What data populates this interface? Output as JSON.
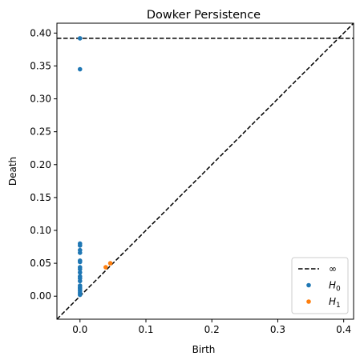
{
  "chart_data": {
    "type": "scatter",
    "title": "Dowker Persistence",
    "xlabel": "Birth",
    "ylabel": "Death",
    "xlim": [
      -0.035,
      0.415
    ],
    "ylim": [
      -0.035,
      0.415
    ],
    "x_ticks": [
      0.0,
      0.1,
      0.2,
      0.3,
      0.4
    ],
    "x_tick_labels": [
      "0.0",
      "0.1",
      "0.2",
      "0.3",
      "0.4"
    ],
    "y_ticks": [
      0.0,
      0.05,
      0.1,
      0.15,
      0.2,
      0.25,
      0.3,
      0.35,
      0.4
    ],
    "y_tick_labels": [
      "0.00",
      "0.05",
      "0.10",
      "0.15",
      "0.20",
      "0.25",
      "0.30",
      "0.35",
      "0.40"
    ],
    "grid": false,
    "legend_position": "bottom-right",
    "infinity_level": 0.392,
    "diagonal": true,
    "series": [
      {
        "name": "H0",
        "color": "#1f77b4",
        "points": [
          [
            0,
            0.392
          ],
          [
            0,
            0.345
          ],
          [
            0,
            0.08
          ],
          [
            0,
            0.077
          ],
          [
            0,
            0.07
          ],
          [
            0,
            0.066
          ],
          [
            0,
            0.054
          ],
          [
            0,
            0.052
          ],
          [
            0,
            0.044
          ],
          [
            0,
            0.041
          ],
          [
            0,
            0.036
          ],
          [
            0,
            0.03
          ],
          [
            0,
            0.027
          ],
          [
            0,
            0.023
          ],
          [
            0,
            0.016
          ],
          [
            0,
            0.013
          ],
          [
            0,
            0.011
          ],
          [
            0,
            0.008
          ],
          [
            0,
            0.005
          ],
          [
            0,
            0.002
          ]
        ]
      },
      {
        "name": "H1",
        "color": "#ff7f0e",
        "points": [
          [
            0.039,
            0.044
          ],
          [
            0.046,
            0.05
          ]
        ]
      }
    ],
    "legend": [
      {
        "kind": "line",
        "label": "∞",
        "color": "#000000"
      },
      {
        "kind": "dot",
        "label_main": "H",
        "label_sub": "0",
        "color": "#1f77b4"
      },
      {
        "kind": "dot",
        "label_main": "H",
        "label_sub": "1",
        "color": "#ff7f0e"
      }
    ]
  }
}
